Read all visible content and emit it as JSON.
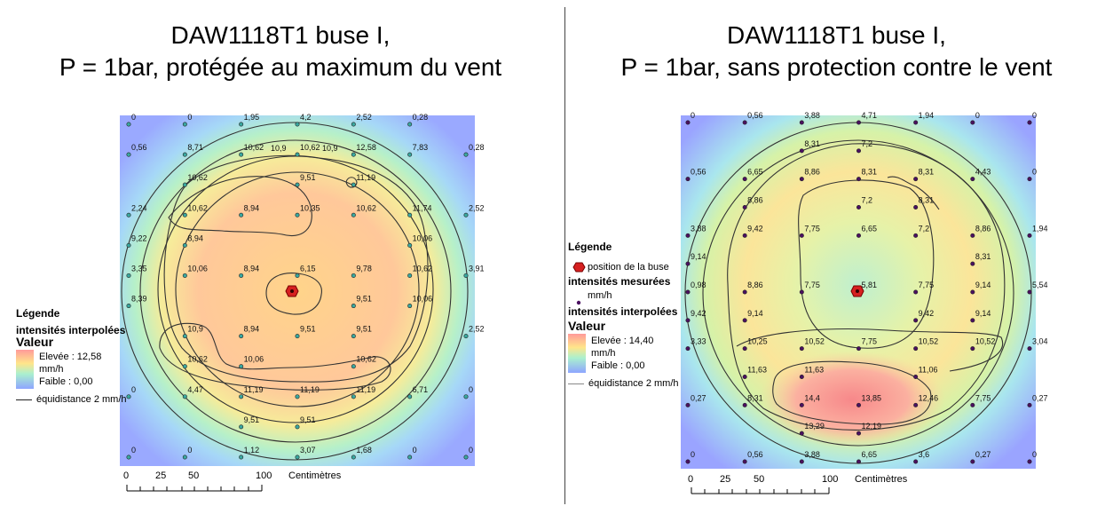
{
  "left": {
    "title_line1": "DAW1118T1 buse I,",
    "title_line2": "P = 1bar, protégée au maximum du vent",
    "legend": {
      "title": "Légende",
      "interp_label": "intensités interpolées",
      "valeur_label": "Valeur",
      "high": "Elevée : 12,58",
      "unit": "mm/h",
      "low": "Faible : 0,00",
      "contour": "équidistance 2 mm/h"
    },
    "scale": {
      "t0": "0",
      "t25": "25",
      "t50": "50",
      "t100": "100",
      "unit": "Centimètres"
    },
    "grid": [
      [
        "0",
        "0",
        "1,95",
        "4,2",
        "2,52",
        "0,28",
        ""
      ],
      [
        "0,56",
        "8,71",
        "10,62",
        "10,62",
        "12,58",
        "7,83",
        "0,28"
      ],
      [
        "",
        "10,62",
        "",
        "9,51",
        "11,19",
        "",
        ""
      ],
      [
        "2,24",
        "10,62",
        "8,94",
        "10,35",
        "10,62",
        "11,74",
        "2,52"
      ],
      [
        "9,22",
        "8,94",
        "",
        "",
        "",
        "10,06",
        ""
      ],
      [
        "3,35",
        "10,06",
        "8,94",
        "6,15",
        "9,78",
        "10,62",
        "3,91"
      ],
      [
        "8,39",
        "",
        "",
        "",
        "9,51",
        "10,06",
        ""
      ],
      [
        "",
        "10,9",
        "8,94",
        "9,51",
        "9,51",
        "",
        "2,52"
      ],
      [
        "",
        "10,62",
        "10,06",
        "",
        "10,62",
        "",
        ""
      ],
      [
        "0",
        "4,47",
        "11,19",
        "11,19",
        "11,19",
        "6,71",
        "0"
      ],
      [
        "",
        "",
        "9,51",
        "9,51",
        "",
        "",
        ""
      ],
      [
        "0",
        "0",
        "1,12",
        "3,07",
        "1,68",
        "0",
        "0"
      ]
    ],
    "extra_top": [
      "10,9",
      "10,9"
    ]
  },
  "right": {
    "title_line1": "DAW1118T1 buse I,",
    "title_line2": "P = 1bar, sans protection contre le vent",
    "legend": {
      "title": "Légende",
      "buse": "position de la buse",
      "mesure_label": "intensités mesurées",
      "mesure_unit": "mm/h",
      "interp_label": "intensités interpolées",
      "valeur_label": "Valeur",
      "high": "Elevée : 14,40",
      "unit": "mm/h",
      "low": "Faible : 0,00",
      "contour": "équidistance 2 mm/h"
    },
    "scale": {
      "t0": "0",
      "t25": "25",
      "t50": "50",
      "t100": "100",
      "unit": "Centimètres"
    },
    "rows": [
      [
        "0",
        "0,56",
        "3,88",
        "4,71",
        "1,94",
        "0",
        "0"
      ],
      [
        "",
        "",
        "8,31",
        "7,2",
        "",
        "",
        ""
      ],
      [
        "0,56",
        "6,65",
        "8,86",
        "8,31",
        "8,31",
        "4,43",
        "0"
      ],
      [
        "",
        "8,86",
        "",
        "7,2",
        "8,31",
        "",
        ""
      ],
      [
        "3,88",
        "9,42",
        "7,75",
        "6,65",
        "7,2",
        "8,86",
        "1,94"
      ],
      [
        "9,14",
        "",
        "",
        "",
        "",
        "8,31",
        ""
      ],
      [
        "0,98",
        "8,86",
        "7,75",
        "5,81",
        "7,75",
        "9,14",
        "5,54"
      ],
      [
        "9,42",
        "9,14",
        "",
        "",
        "9,42",
        "9,14",
        ""
      ],
      [
        "3,33",
        "10,25",
        "10,52",
        "7,75",
        "10,52",
        "10,52",
        "3,04"
      ],
      [
        "",
        "11,63",
        "11,63",
        "",
        "11,06",
        "",
        ""
      ],
      [
        "0,27",
        "8,31",
        "14,4",
        "13,85",
        "12,46",
        "7,75",
        "0,27"
      ],
      [
        "",
        "",
        "13,29",
        "12,19",
        "",
        "",
        ""
      ],
      [
        "0",
        "0,56",
        "3,88",
        "6,65",
        "3,6",
        "0,27",
        "0"
      ]
    ]
  }
}
